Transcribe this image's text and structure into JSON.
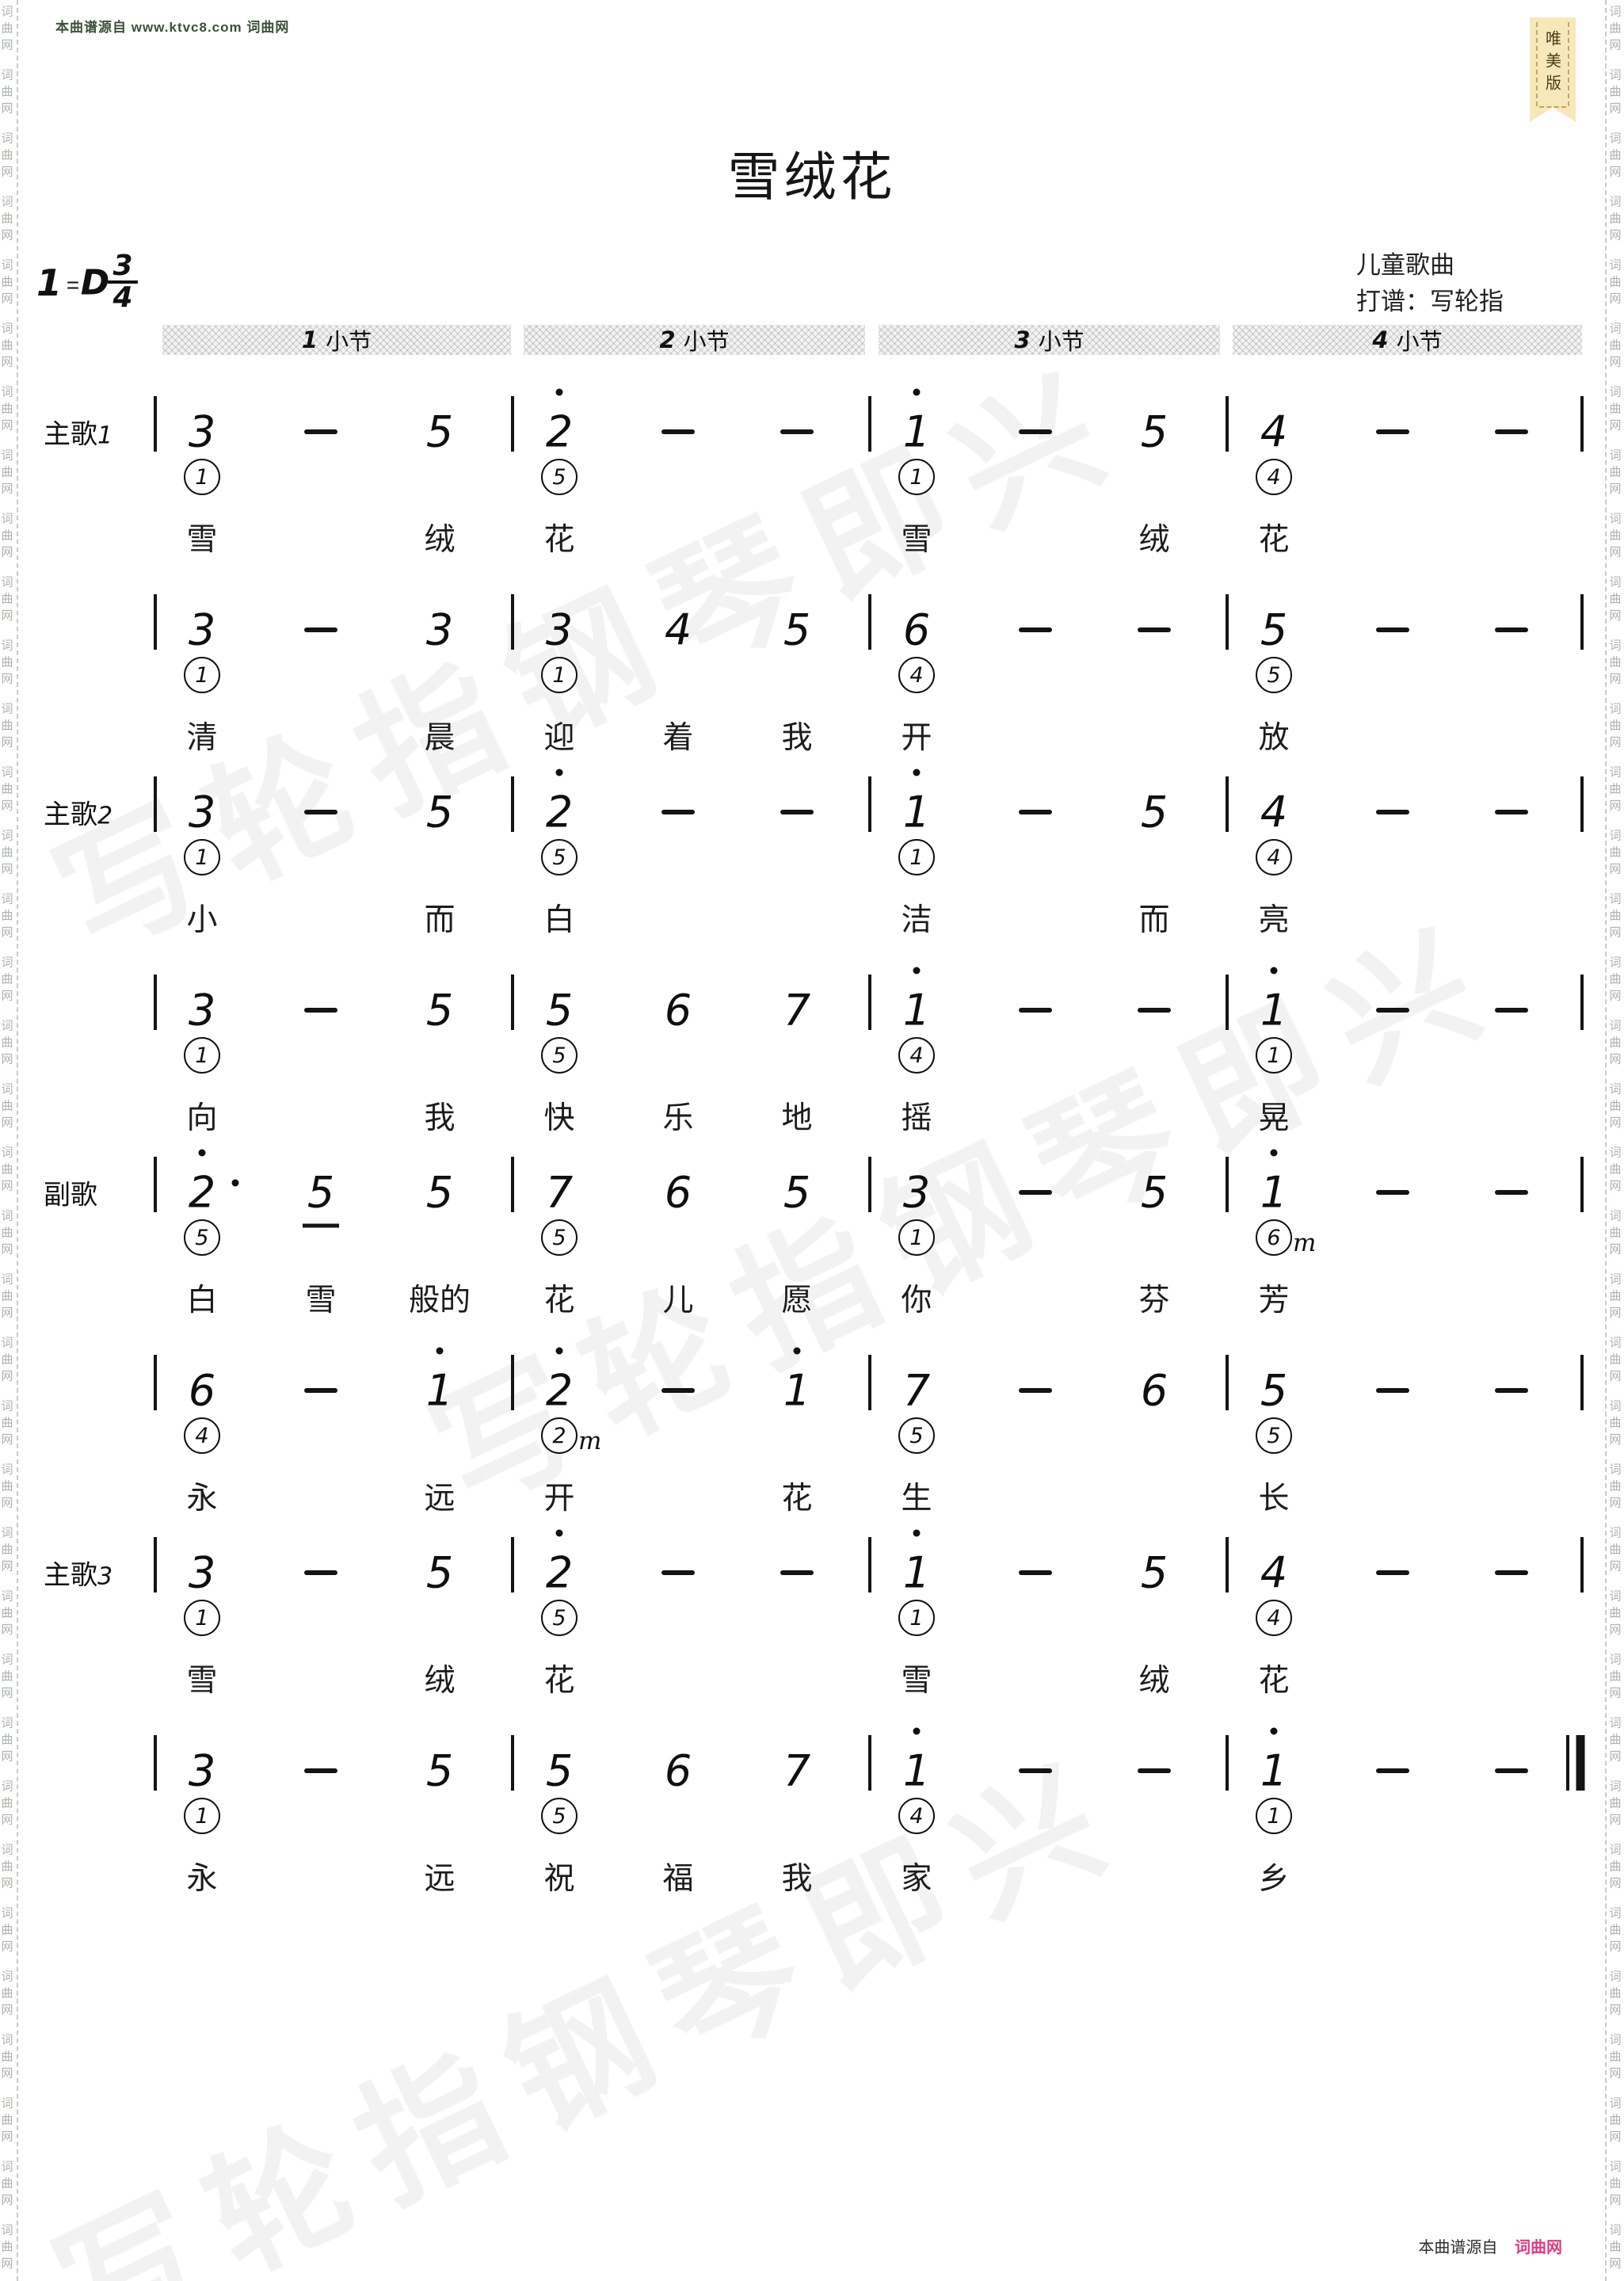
{
  "page": {
    "top_source": "本曲谱源自 www.ktvc8.com 词曲网",
    "bookmark": "唯美版",
    "watermark": "写轮指钢琴即兴",
    "side_marks": [
      "词",
      "曲",
      "网"
    ],
    "footer_prefix": "本曲谱源自",
    "footer_brand": "词曲网",
    "colors": {
      "ink": "#111111",
      "source_text_green": "#3c4f3a",
      "footer_brand_pink": "#e23a82",
      "bookmark_bg": "#f6e8bb",
      "bookmark_text": "#4d3b15",
      "watermark_gray": "rgba(0,0,0,0.05)"
    }
  },
  "header": {
    "title": "雪绒花",
    "key_prefix": "1",
    "key_equals": "=",
    "key_value": "D",
    "time_numerator": "3",
    "time_denominator": "4",
    "genre": "儿童歌曲",
    "transcriber": "打谱：写轮指",
    "measure_headers": [
      "1 小节",
      "2 小节",
      "3 小节",
      "4 小节"
    ]
  },
  "score": {
    "rows": [
      {
        "label": "主歌",
        "label_num": "1",
        "measures": [
          [
            {
              "n": "3",
              "f": "1"
            },
            {
              "n": "-"
            },
            {
              "n": "5"
            }
          ],
          [
            {
              "n": "2",
              "hi": 1,
              "f": "5"
            },
            {
              "n": "-"
            },
            {
              "n": "-"
            }
          ],
          [
            {
              "n": "1",
              "hi": 1,
              "f": "1"
            },
            {
              "n": "-"
            },
            {
              "n": "5"
            }
          ],
          [
            {
              "n": "4",
              "f": "4"
            },
            {
              "n": "-"
            },
            {
              "n": "-"
            }
          ]
        ],
        "lyrics": [
          [
            0,
            0,
            "雪"
          ],
          [
            0,
            2,
            "绒"
          ],
          [
            1,
            0,
            "花"
          ],
          [
            2,
            0,
            "雪"
          ],
          [
            2,
            2,
            "绒"
          ],
          [
            3,
            0,
            "花"
          ]
        ]
      },
      {
        "label": "",
        "label_num": "",
        "measures": [
          [
            {
              "n": "3",
              "f": "1"
            },
            {
              "n": "-"
            },
            {
              "n": "3"
            }
          ],
          [
            {
              "n": "3",
              "f": "1"
            },
            {
              "n": "4"
            },
            {
              "n": "5"
            }
          ],
          [
            {
              "n": "6",
              "f": "4"
            },
            {
              "n": "-"
            },
            {
              "n": "-"
            }
          ],
          [
            {
              "n": "5",
              "f": "5"
            },
            {
              "n": "-"
            },
            {
              "n": "-"
            }
          ]
        ],
        "lyrics": [
          [
            0,
            0,
            "清"
          ],
          [
            0,
            2,
            "晨"
          ],
          [
            1,
            0,
            "迎"
          ],
          [
            1,
            1,
            "着"
          ],
          [
            1,
            2,
            "我"
          ],
          [
            2,
            0,
            "开"
          ],
          [
            3,
            0,
            "放"
          ]
        ]
      },
      {
        "label": "主歌",
        "label_num": "2",
        "measures": [
          [
            {
              "n": "3",
              "f": "1"
            },
            {
              "n": "-"
            },
            {
              "n": "5"
            }
          ],
          [
            {
              "n": "2",
              "hi": 1,
              "f": "5"
            },
            {
              "n": "-"
            },
            {
              "n": "-"
            }
          ],
          [
            {
              "n": "1",
              "hi": 1,
              "f": "1"
            },
            {
              "n": "-"
            },
            {
              "n": "5"
            }
          ],
          [
            {
              "n": "4",
              "f": "4"
            },
            {
              "n": "-"
            },
            {
              "n": "-"
            }
          ]
        ],
        "lyrics": [
          [
            0,
            0,
            "小"
          ],
          [
            0,
            2,
            "而"
          ],
          [
            1,
            0,
            "白"
          ],
          [
            2,
            0,
            "洁"
          ],
          [
            2,
            2,
            "而"
          ],
          [
            3,
            0,
            "亮"
          ]
        ]
      },
      {
        "label": "",
        "label_num": "",
        "measures": [
          [
            {
              "n": "3",
              "f": "1"
            },
            {
              "n": "-"
            },
            {
              "n": "5"
            }
          ],
          [
            {
              "n": "5",
              "f": "5"
            },
            {
              "n": "6"
            },
            {
              "n": "7"
            }
          ],
          [
            {
              "n": "1",
              "hi": 1,
              "f": "4"
            },
            {
              "n": "-"
            },
            {
              "n": "-"
            }
          ],
          [
            {
              "n": "1",
              "hi": 1,
              "f": "1"
            },
            {
              "n": "-"
            },
            {
              "n": "-"
            }
          ]
        ],
        "lyrics": [
          [
            0,
            0,
            "向"
          ],
          [
            0,
            2,
            "我"
          ],
          [
            1,
            0,
            "快"
          ],
          [
            1,
            1,
            "乐"
          ],
          [
            1,
            2,
            "地"
          ],
          [
            2,
            0,
            "摇"
          ],
          [
            3,
            0,
            "晃"
          ]
        ]
      },
      {
        "label": "副歌",
        "label_num": "",
        "measures": [
          [
            {
              "n": "2",
              "hi": 1,
              "aug": 1,
              "f": "5"
            },
            {
              "n": "5",
              "under": 1
            },
            {
              "n": "5"
            }
          ],
          [
            {
              "n": "7",
              "f": "5"
            },
            {
              "n": "6"
            },
            {
              "n": "5"
            }
          ],
          [
            {
              "n": "3",
              "f": "1"
            },
            {
              "n": "-"
            },
            {
              "n": "5"
            }
          ],
          [
            {
              "n": "1",
              "hi": 1,
              "f": "6",
              "fm": 1
            },
            {
              "n": "-"
            },
            {
              "n": "-"
            }
          ]
        ],
        "lyrics": [
          [
            0,
            0,
            "白"
          ],
          [
            0,
            1,
            "雪"
          ],
          [
            0,
            2,
            "般的"
          ],
          [
            1,
            0,
            "花"
          ],
          [
            1,
            1,
            "儿"
          ],
          [
            1,
            2,
            "愿"
          ],
          [
            2,
            0,
            "你"
          ],
          [
            2,
            2,
            "芬"
          ],
          [
            3,
            0,
            "芳"
          ]
        ]
      },
      {
        "label": "",
        "label_num": "",
        "measures": [
          [
            {
              "n": "6",
              "f": "4"
            },
            {
              "n": "-"
            },
            {
              "n": "1",
              "hi": 1
            }
          ],
          [
            {
              "n": "2",
              "hi": 1,
              "f": "2",
              "fm": 1
            },
            {
              "n": "-"
            },
            {
              "n": "1",
              "hi": 1
            }
          ],
          [
            {
              "n": "7",
              "f": "5"
            },
            {
              "n": "-"
            },
            {
              "n": "6"
            }
          ],
          [
            {
              "n": "5",
              "f": "5"
            },
            {
              "n": "-"
            },
            {
              "n": "-"
            }
          ]
        ],
        "lyrics": [
          [
            0,
            0,
            "永"
          ],
          [
            0,
            2,
            "远"
          ],
          [
            1,
            0,
            "开"
          ],
          [
            1,
            2,
            "花"
          ],
          [
            2,
            0,
            "生"
          ],
          [
            3,
            0,
            "长"
          ]
        ]
      },
      {
        "label": "主歌",
        "label_num": "3",
        "measures": [
          [
            {
              "n": "3",
              "f": "1"
            },
            {
              "n": "-"
            },
            {
              "n": "5"
            }
          ],
          [
            {
              "n": "2",
              "hi": 1,
              "f": "5"
            },
            {
              "n": "-"
            },
            {
              "n": "-"
            }
          ],
          [
            {
              "n": "1",
              "hi": 1,
              "f": "1"
            },
            {
              "n": "-"
            },
            {
              "n": "5"
            }
          ],
          [
            {
              "n": "4",
              "f": "4"
            },
            {
              "n": "-"
            },
            {
              "n": "-"
            }
          ]
        ],
        "lyrics": [
          [
            0,
            0,
            "雪"
          ],
          [
            0,
            2,
            "绒"
          ],
          [
            1,
            0,
            "花"
          ],
          [
            2,
            0,
            "雪"
          ],
          [
            2,
            2,
            "绒"
          ],
          [
            3,
            0,
            "花"
          ]
        ]
      },
      {
        "label": "",
        "label_num": "",
        "final": 1,
        "measures": [
          [
            {
              "n": "3",
              "f": "1"
            },
            {
              "n": "-"
            },
            {
              "n": "5"
            }
          ],
          [
            {
              "n": "5",
              "f": "5"
            },
            {
              "n": "6"
            },
            {
              "n": "7"
            }
          ],
          [
            {
              "n": "1",
              "hi": 1,
              "f": "4"
            },
            {
              "n": "-"
            },
            {
              "n": "-"
            }
          ],
          [
            {
              "n": "1",
              "hi": 1,
              "f": "1"
            },
            {
              "n": "-"
            },
            {
              "n": "-"
            }
          ]
        ],
        "lyrics": [
          [
            0,
            0,
            "永"
          ],
          [
            0,
            2,
            "远"
          ],
          [
            1,
            0,
            "祝"
          ],
          [
            1,
            1,
            "福"
          ],
          [
            1,
            2,
            "我"
          ],
          [
            2,
            0,
            "家"
          ],
          [
            3,
            0,
            "乡"
          ]
        ]
      }
    ]
  }
}
